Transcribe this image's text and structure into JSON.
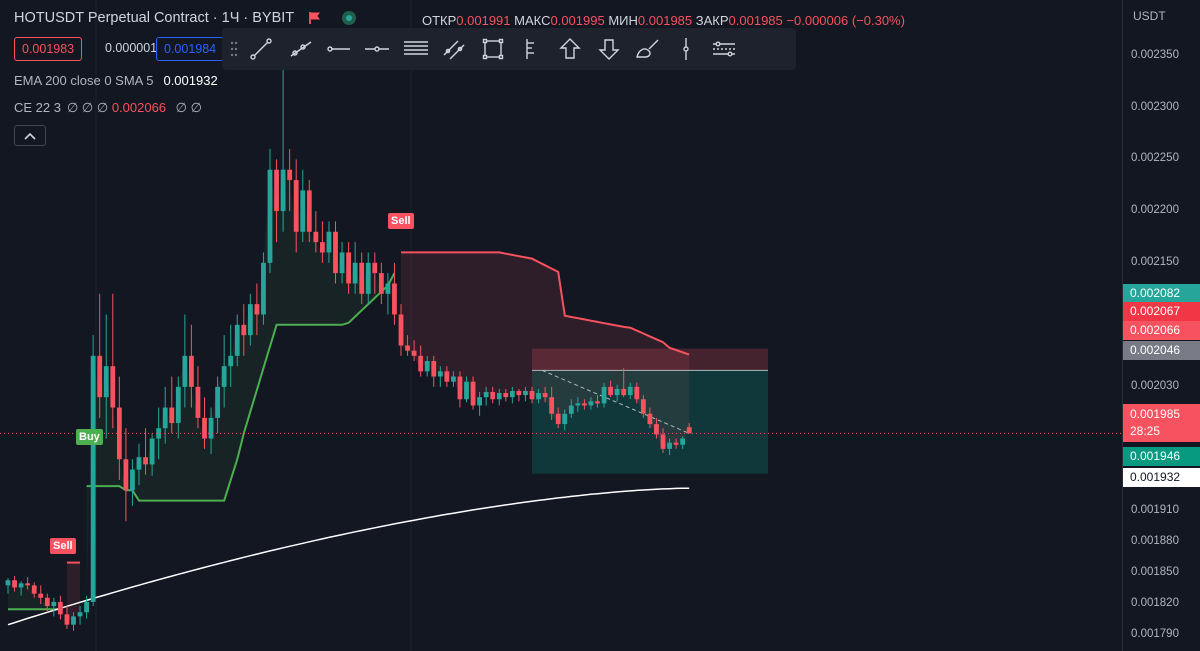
{
  "header": {
    "title": "HOTUSDT Perpetual Contract · 1Ч · BYBIT",
    "ohlc": [
      {
        "label": "ОТКР",
        "value": "0.001991"
      },
      {
        "label": "МАКС",
        "value": "0.001995"
      },
      {
        "label": "МИН",
        "value": "0.001985"
      },
      {
        "label": "ЗАКР",
        "value": "0.001985"
      }
    ],
    "change": "−0.000006 (−0.30%)"
  },
  "trade_boxes": {
    "sell_price": "0.001983",
    "spread": "0.000001",
    "buy_price": "0.001984"
  },
  "indicators": {
    "ema": {
      "label": "EMA 200 close 0 SMA 5",
      "value": "0.001932"
    },
    "ce": {
      "label": "CE 22 3",
      "placeholders": "∅ ∅ ∅",
      "value": "0.002066",
      "trailing": "∅ ∅"
    }
  },
  "toolbar": {
    "tools": [
      "trend-line-icon",
      "ray-icon",
      "horizontal-ray-icon",
      "horizontal-line-icon",
      "parallel-channel-icon",
      "trend-angle-icon",
      "rectangle-icon",
      "price-range-icon",
      "arrow-up-icon",
      "arrow-down-icon",
      "brush-icon",
      "vertical-line-icon",
      "cross-line-icon"
    ]
  },
  "price_axis": {
    "unit": "USDT",
    "labels": [
      "0.002350",
      "0.002300",
      "0.002250",
      "0.002200",
      "0.002150",
      "0.002030",
      "0.001910",
      "0.001880",
      "0.001850",
      "0.001820",
      "0.001790"
    ],
    "tags": {
      "bid": "0.002082",
      "high": "0.002067",
      "ce": "0.002066",
      "gray": "0.002046",
      "last_price": "0.001985",
      "countdown": "28:25",
      "stop": "0.001946",
      "ema": "0.001932"
    }
  },
  "signals": {
    "sell_1": "Sell",
    "sell_2": "Sell",
    "buy": "Buy"
  },
  "colors": {
    "background": "#131722",
    "bull": "#26a69a",
    "bear": "#f7525f",
    "ce_long": "#4caf50",
    "ce_short": "#f7525f",
    "ema": "#ffffff"
  },
  "chart_data": {
    "type": "candlestick",
    "symbol": "HOTUSDT Perpetual Contract",
    "interval": "1Ч",
    "exchange": "BYBIT",
    "ylim": [
      0.00178,
      0.00237
    ],
    "candles": [
      [
        0.001838,
        0.001845,
        0.00183,
        0.001843
      ],
      [
        0.001843,
        0.001847,
        0.001832,
        0.001836
      ],
      [
        0.001836,
        0.001842,
        0.001828,
        0.00184
      ],
      [
        0.00184,
        0.001846,
        0.001834,
        0.001838
      ],
      [
        0.001838,
        0.001841,
        0.001826,
        0.00183
      ],
      [
        0.00183,
        0.001838,
        0.00182,
        0.001826
      ],
      [
        0.001826,
        0.00183,
        0.001812,
        0.001818
      ],
      [
        0.001818,
        0.001826,
        0.001808,
        0.001822
      ],
      [
        0.001822,
        0.001828,
        0.001805,
        0.00181
      ],
      [
        0.00181,
        0.001818,
        0.001796,
        0.0018
      ],
      [
        0.0018,
        0.001812,
        0.001794,
        0.001808
      ],
      [
        0.001808,
        0.001818,
        0.0018,
        0.001812
      ],
      [
        0.001812,
        0.001828,
        0.001806,
        0.001822
      ],
      [
        0.001822,
        0.00208,
        0.001818,
        0.00206
      ],
      [
        0.00206,
        0.00212,
        0.002,
        0.00202
      ],
      [
        0.00202,
        0.0021,
        0.00198,
        0.00205
      ],
      [
        0.00205,
        0.00212,
        0.00199,
        0.00201
      ],
      [
        0.00201,
        0.00204,
        0.00194,
        0.00196
      ],
      [
        0.00196,
        0.00199,
        0.0019,
        0.00193
      ],
      [
        0.00193,
        0.00196,
        0.001915,
        0.00195
      ],
      [
        0.00195,
        0.001975,
        0.001935,
        0.001962
      ],
      [
        0.001962,
        0.00199,
        0.001945,
        0.001955
      ],
      [
        0.001955,
        0.001985,
        0.001944,
        0.00198
      ],
      [
        0.00198,
        0.00201,
        0.00196,
        0.00199
      ],
      [
        0.00199,
        0.00203,
        0.001975,
        0.00201
      ],
      [
        0.00201,
        0.00204,
        0.001985,
        0.001995
      ],
      [
        0.001995,
        0.00204,
        0.00198,
        0.00203
      ],
      [
        0.00203,
        0.0021,
        0.00201,
        0.00206
      ],
      [
        0.00206,
        0.00209,
        0.00201,
        0.00203
      ],
      [
        0.00203,
        0.00205,
        0.00199,
        0.002
      ],
      [
        0.002,
        0.00202,
        0.00197,
        0.00198
      ],
      [
        0.00198,
        0.00201,
        0.001965,
        0.002
      ],
      [
        0.002,
        0.00204,
        0.001985,
        0.00203
      ],
      [
        0.00203,
        0.00208,
        0.00201,
        0.00205
      ],
      [
        0.00205,
        0.00209,
        0.00203,
        0.00206
      ],
      [
        0.00206,
        0.0021,
        0.00205,
        0.00209
      ],
      [
        0.00209,
        0.00211,
        0.00206,
        0.00208
      ],
      [
        0.00208,
        0.00212,
        0.00207,
        0.00211
      ],
      [
        0.00211,
        0.00213,
        0.00208,
        0.0021
      ],
      [
        0.0021,
        0.00216,
        0.00209,
        0.00215
      ],
      [
        0.00215,
        0.00226,
        0.00214,
        0.00224
      ],
      [
        0.00224,
        0.00225,
        0.00217,
        0.0022
      ],
      [
        0.0022,
        0.00237,
        0.00218,
        0.00224
      ],
      [
        0.00224,
        0.00226,
        0.0022,
        0.00223
      ],
      [
        0.00223,
        0.00225,
        0.00216,
        0.00218
      ],
      [
        0.00218,
        0.00224,
        0.00217,
        0.00222
      ],
      [
        0.00222,
        0.00223,
        0.00217,
        0.00218
      ],
      [
        0.00218,
        0.0022,
        0.00216,
        0.00217
      ],
      [
        0.00217,
        0.00219,
        0.00215,
        0.00216
      ],
      [
        0.00216,
        0.00219,
        0.00215,
        0.00218
      ],
      [
        0.00218,
        0.00219,
        0.00213,
        0.00214
      ],
      [
        0.00214,
        0.00217,
        0.00213,
        0.00216
      ],
      [
        0.00216,
        0.00217,
        0.00212,
        0.00213
      ],
      [
        0.00213,
        0.00217,
        0.00212,
        0.00215
      ],
      [
        0.00215,
        0.00216,
        0.00211,
        0.00212
      ],
      [
        0.00212,
        0.00216,
        0.00211,
        0.00215
      ],
      [
        0.00215,
        0.00216,
        0.00212,
        0.00214
      ],
      [
        0.00214,
        0.00215,
        0.00211,
        0.00212
      ],
      [
        0.00212,
        0.00214,
        0.0021,
        0.00213
      ],
      [
        0.00213,
        0.00215,
        0.00209,
        0.0021
      ],
      [
        0.0021,
        0.00211,
        0.00206,
        0.00207
      ],
      [
        0.00207,
        0.00208,
        0.00206,
        0.002065
      ],
      [
        0.002065,
        0.002075,
        0.002055,
        0.00206
      ],
      [
        0.00206,
        0.00207,
        0.00204,
        0.002045
      ],
      [
        0.002045,
        0.00206,
        0.00204,
        0.002055
      ],
      [
        0.002055,
        0.00206,
        0.00203,
        0.00204
      ],
      [
        0.00204,
        0.00205,
        0.00203,
        0.002045
      ],
      [
        0.002045,
        0.00205,
        0.00203,
        0.002035
      ],
      [
        0.002035,
        0.002045,
        0.00203,
        0.00204
      ],
      [
        0.00204,
        0.002045,
        0.00201,
        0.002018
      ],
      [
        0.002018,
        0.00204,
        0.002015,
        0.002035
      ],
      [
        0.002035,
        0.00204,
        0.002008,
        0.002012
      ],
      [
        0.002012,
        0.002025,
        0.002002,
        0.00202
      ],
      [
        0.00202,
        0.00203,
        0.002012,
        0.002025
      ],
      [
        0.002025,
        0.00203,
        0.002014,
        0.002018
      ],
      [
        0.002018,
        0.002028,
        0.002012,
        0.002024
      ],
      [
        0.002024,
        0.002028,
        0.002016,
        0.00202
      ],
      [
        0.00202,
        0.00203,
        0.002014,
        0.002026
      ],
      [
        0.002026,
        0.002028,
        0.002016,
        0.002022
      ],
      [
        0.002022,
        0.00203,
        0.002016,
        0.002026
      ],
      [
        0.002026,
        0.00203,
        0.002014,
        0.002018
      ],
      [
        0.002018,
        0.002028,
        0.002014,
        0.002024
      ],
      [
        0.002024,
        0.00203,
        0.002015,
        0.00202
      ],
      [
        0.00202,
        0.00203,
        0.001998,
        0.002004
      ],
      [
        0.002004,
        0.00201,
        0.00199,
        0.001994
      ],
      [
        0.001994,
        0.002008,
        0.001988,
        0.002004
      ],
      [
        0.002004,
        0.002018,
        0.002,
        0.002012
      ],
      [
        0.002012,
        0.00202,
        0.002006,
        0.002014
      ],
      [
        0.002014,
        0.002018,
        0.002008,
        0.002012
      ],
      [
        0.002012,
        0.00202,
        0.002008,
        0.002016
      ],
      [
        0.002016,
        0.002022,
        0.00201,
        0.002014
      ],
      [
        0.002014,
        0.002034,
        0.00201,
        0.00203
      ],
      [
        0.00203,
        0.002036,
        0.00202,
        0.002022
      ],
      [
        0.002022,
        0.002032,
        0.002016,
        0.002028
      ],
      [
        0.002028,
        0.002048,
        0.00202,
        0.002022
      ],
      [
        0.002022,
        0.002034,
        0.002018,
        0.00203
      ],
      [
        0.00203,
        0.002034,
        0.002014,
        0.002018
      ],
      [
        0.002018,
        0.002022,
        0.002,
        0.002004
      ],
      [
        0.002004,
        0.00201,
        0.00199,
        0.001994
      ],
      [
        0.001994,
        0.002,
        0.00198,
        0.001984
      ],
      [
        0.001984,
        0.00199,
        0.001966,
        0.00197
      ],
      [
        0.00197,
        0.00198,
        0.001964,
        0.001976
      ],
      [
        0.001976,
        0.00198,
        0.00197,
        0.001974
      ],
      [
        0.001974,
        0.001982,
        0.00197,
        0.00198
      ],
      [
        0.001991,
        0.001995,
        0.001985,
        0.001985
      ]
    ],
    "ema_value": 0.001932,
    "ce_value": 0.002066
  }
}
